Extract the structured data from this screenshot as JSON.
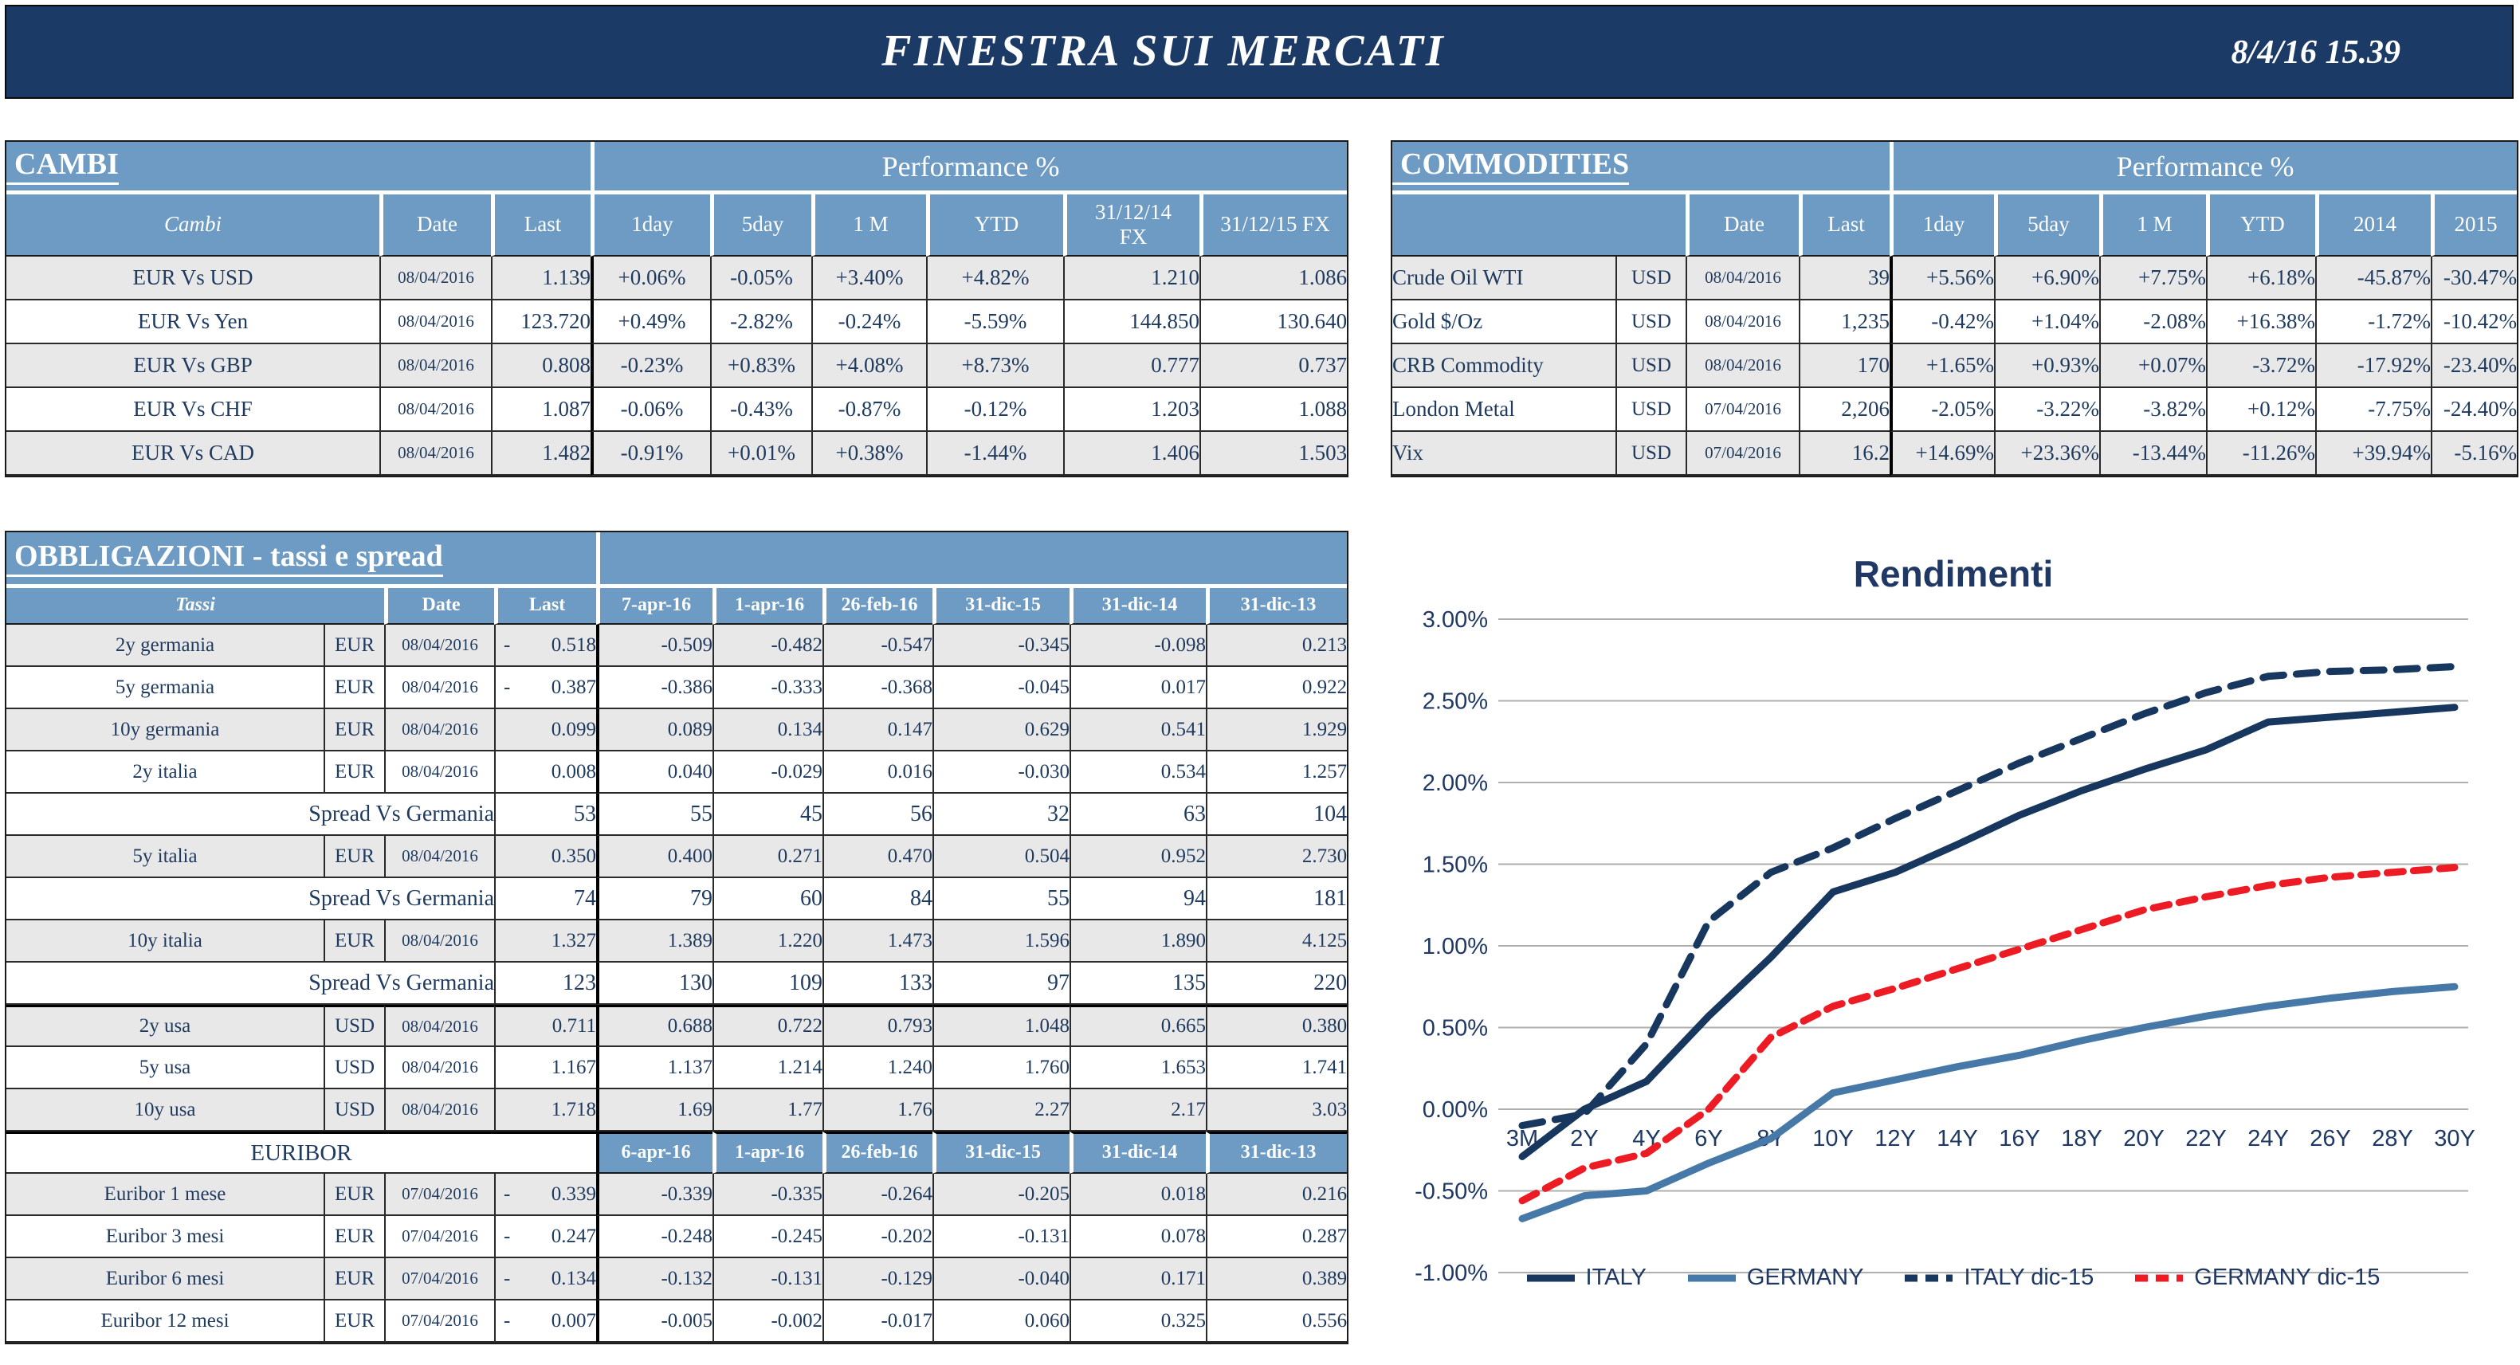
{
  "header": {
    "title": "FINESTRA SUI MERCATI",
    "datetime": "8/4/16 15.39"
  },
  "colors": {
    "bar_navy": "#1C3A66",
    "accent_blue": "#6D9BC3",
    "navy_text": "#1F3A5F",
    "green": "#16A360",
    "red": "#E8192C",
    "row_gray": "#E9E8E8",
    "grid_gray": "#AFAFAF"
  },
  "cambi": {
    "section_title": "CAMBI",
    "perf_title": "Performance %",
    "columns": [
      "Cambi",
      "Date",
      "Last",
      "1day",
      "5day",
      "1 M",
      "YTD",
      "31/12/14\nFX",
      "31/12/15  FX"
    ],
    "rows": [
      {
        "name": "EUR Vs USD",
        "date": "08/04/2016",
        "last": "1.139",
        "perf": [
          {
            "v": "+0.06%",
            "c": "g"
          },
          {
            "v": "-0.05%",
            "c": "r"
          },
          {
            "v": "+3.40%",
            "c": "g"
          },
          {
            "v": "+4.82%",
            "c": "g"
          }
        ],
        "fx14": "1.210",
        "fx15": "1.086"
      },
      {
        "name": "EUR Vs Yen",
        "date": "08/04/2016",
        "last": "123.720",
        "perf": [
          {
            "v": "+0.49%",
            "c": "g"
          },
          {
            "v": "-2.82%",
            "c": "r"
          },
          {
            "v": "-0.24%",
            "c": "r"
          },
          {
            "v": "-5.59%",
            "c": "r"
          }
        ],
        "fx14": "144.850",
        "fx15": "130.640"
      },
      {
        "name": "EUR Vs GBP",
        "date": "08/04/2016",
        "last": "0.808",
        "perf": [
          {
            "v": "-0.23%",
            "c": "r"
          },
          {
            "v": "+0.83%",
            "c": "g"
          },
          {
            "v": "+4.08%",
            "c": "g"
          },
          {
            "v": "+8.73%",
            "c": "g"
          }
        ],
        "fx14": "0.777",
        "fx15": "0.737"
      },
      {
        "name": "EUR Vs CHF",
        "date": "08/04/2016",
        "last": "1.087",
        "perf": [
          {
            "v": "-0.06%",
            "c": "r"
          },
          {
            "v": "-0.43%",
            "c": "r"
          },
          {
            "v": "-0.87%",
            "c": "r"
          },
          {
            "v": "-0.12%",
            "c": "r"
          }
        ],
        "fx14": "1.203",
        "fx15": "1.088"
      },
      {
        "name": "EUR Vs CAD",
        "date": "08/04/2016",
        "last": "1.482",
        "perf": [
          {
            "v": "-0.91%",
            "c": "r"
          },
          {
            "v": "+0.01%",
            "c": "g"
          },
          {
            "v": "+0.38%",
            "c": "g"
          },
          {
            "v": "-1.44%",
            "c": "r"
          }
        ],
        "fx14": "1.406",
        "fx15": "1.503"
      }
    ]
  },
  "commodities": {
    "section_title": "COMMODITIES",
    "perf_title": "Performance %",
    "columns": [
      "",
      "Date",
      "Last",
      "1day",
      "5day",
      "1 M",
      "YTD",
      "2014",
      "2015"
    ],
    "rows": [
      {
        "name": "Crude Oil WTI",
        "ccy": "USD",
        "date": "08/04/2016",
        "last": "39",
        "perf": [
          {
            "v": "+5.56%",
            "c": "g"
          },
          {
            "v": "+6.90%",
            "c": "g"
          },
          {
            "v": "+7.75%",
            "c": "g"
          },
          {
            "v": "+6.18%",
            "c": "g"
          },
          {
            "v": "-45.87%",
            "c": "r"
          },
          {
            "v": "-30.47%",
            "c": "r"
          }
        ]
      },
      {
        "name": "Gold $/Oz",
        "ccy": "USD",
        "date": "08/04/2016",
        "last": "1,235",
        "perf": [
          {
            "v": "-0.42%",
            "c": "r"
          },
          {
            "v": "+1.04%",
            "c": "g"
          },
          {
            "v": "-2.08%",
            "c": "r"
          },
          {
            "v": "+16.38%",
            "c": "g"
          },
          {
            "v": "-1.72%",
            "c": "r"
          },
          {
            "v": "-10.42%",
            "c": "r"
          }
        ]
      },
      {
        "name": "CRB Commodity",
        "ccy": "USD",
        "date": "08/04/2016",
        "last": "170",
        "perf": [
          {
            "v": "+1.65%",
            "c": "g"
          },
          {
            "v": "+0.93%",
            "c": "g"
          },
          {
            "v": "+0.07%",
            "c": "g"
          },
          {
            "v": "-3.72%",
            "c": "r"
          },
          {
            "v": "-17.92%",
            "c": "r"
          },
          {
            "v": "-23.40%",
            "c": "r"
          }
        ]
      },
      {
        "name": "London Metal",
        "ccy": "USD",
        "date": "07/04/2016",
        "last": "2,206",
        "perf": [
          {
            "v": "-2.05%",
            "c": "r"
          },
          {
            "v": "-3.22%",
            "c": "r"
          },
          {
            "v": "-3.82%",
            "c": "r"
          },
          {
            "v": "+0.12%",
            "c": "g"
          },
          {
            "v": "-7.75%",
            "c": "r"
          },
          {
            "v": "-24.40%",
            "c": "r"
          }
        ]
      },
      {
        "name": "Vix",
        "ccy": "USD",
        "date": "07/04/2016",
        "last": "16.2",
        "perf": [
          {
            "v": "+14.69%",
            "c": "g"
          },
          {
            "v": "+23.36%",
            "c": "g"
          },
          {
            "v": "-13.44%",
            "c": "r"
          },
          {
            "v": "-11.26%",
            "c": "r"
          },
          {
            "v": "+39.94%",
            "c": "g"
          },
          {
            "v": "-5.16%",
            "c": "r"
          }
        ]
      }
    ]
  },
  "obbligazioni": {
    "section_title": "OBBLIGAZIONI - tassi e spread",
    "neg_prefix": "-",
    "columns": [
      "Tassi",
      "Date",
      "Last",
      "7-apr-16",
      "1-apr-16",
      "26-feb-16",
      "31-dic-15",
      "31-dic-14",
      "31-dic-13"
    ],
    "rows": [
      {
        "type": "data",
        "name": "2y germania",
        "ccy": "EUR",
        "date": "08/04/2016",
        "last": "0.518",
        "last_neg": true,
        "shade": true,
        "vals": [
          "-0.509",
          "-0.482",
          "-0.547",
          "-0.345",
          "-0.098",
          "0.213"
        ]
      },
      {
        "type": "data",
        "name": "5y germania",
        "ccy": "EUR",
        "date": "08/04/2016",
        "last": "0.387",
        "last_neg": true,
        "shade": false,
        "vals": [
          "-0.386",
          "-0.333",
          "-0.368",
          "-0.045",
          "0.017",
          "0.922"
        ]
      },
      {
        "type": "data",
        "name": "10y germania",
        "ccy": "EUR",
        "date": "08/04/2016",
        "last": "0.099",
        "last_neg": false,
        "shade": true,
        "vals": [
          "0.089",
          "0.134",
          "0.147",
          "0.629",
          "0.541",
          "1.929"
        ]
      },
      {
        "type": "data",
        "name": "2y italia",
        "ccy": "EUR",
        "date": "08/04/2016",
        "last": "0.008",
        "last_neg": false,
        "shade": false,
        "vals": [
          "0.040",
          "-0.029",
          "0.016",
          "-0.030",
          "0.534",
          "1.257"
        ]
      },
      {
        "type": "spread",
        "label": "Spread Vs Germania",
        "last": "53",
        "shade": false,
        "vals": [
          "55",
          "45",
          "56",
          "32",
          "63",
          "104"
        ]
      },
      {
        "type": "data",
        "name": "5y italia",
        "ccy": "EUR",
        "date": "08/04/2016",
        "last": "0.350",
        "last_neg": false,
        "shade": true,
        "vals": [
          "0.400",
          "0.271",
          "0.470",
          "0.504",
          "0.952",
          "2.730"
        ]
      },
      {
        "type": "spread",
        "label": "Spread Vs Germania",
        "last": "74",
        "shade": false,
        "vals": [
          "79",
          "60",
          "84",
          "55",
          "94",
          "181"
        ]
      },
      {
        "type": "data",
        "name": "10y italia",
        "ccy": "EUR",
        "date": "08/04/2016",
        "last": "1.327",
        "last_neg": false,
        "shade": true,
        "vals": [
          "1.389",
          "1.220",
          "1.473",
          "1.596",
          "1.890",
          "4.125"
        ]
      },
      {
        "type": "spread",
        "label": "Spread Vs Germania",
        "last": "123",
        "shade": false,
        "vals": [
          "130",
          "109",
          "133",
          "97",
          "135",
          "220"
        ]
      },
      {
        "type": "data",
        "name": "2y usa",
        "ccy": "USD",
        "date": "08/04/2016",
        "last": "0.711",
        "last_neg": false,
        "shade": true,
        "thick_top": true,
        "vals": [
          "0.688",
          "0.722",
          "0.793",
          "1.048",
          "0.665",
          "0.380"
        ]
      },
      {
        "type": "data",
        "name": "5y usa",
        "ccy": "USD",
        "date": "08/04/2016",
        "last": "1.167",
        "last_neg": false,
        "shade": false,
        "vals": [
          "1.137",
          "1.214",
          "1.240",
          "1.760",
          "1.653",
          "1.741"
        ]
      },
      {
        "type": "data",
        "name": "10y usa",
        "ccy": "USD",
        "date": "08/04/2016",
        "last": "1.718",
        "last_neg": false,
        "shade": true,
        "vals": [
          "1.69",
          "1.77",
          "1.76",
          "2.27",
          "2.17",
          "3.03"
        ]
      },
      {
        "type": "euribor_header",
        "label": "EURIBOR",
        "shade": false,
        "thick_top": true,
        "dates": [
          "6-apr-16",
          "1-apr-16",
          "26-feb-16",
          "31-dic-15",
          "31-dic-14",
          "31-dic-13"
        ]
      },
      {
        "type": "data",
        "name": "Euribor 1 mese",
        "ccy": "EUR",
        "date": "07/04/2016",
        "last": "0.339",
        "last_neg": true,
        "shade": true,
        "vals": [
          "-0.339",
          "-0.335",
          "-0.264",
          "-0.205",
          "0.018",
          "0.216"
        ]
      },
      {
        "type": "data",
        "name": "Euribor 3 mesi",
        "ccy": "EUR",
        "date": "07/04/2016",
        "last": "0.247",
        "last_neg": true,
        "shade": false,
        "vals": [
          "-0.248",
          "-0.245",
          "-0.202",
          "-0.131",
          "0.078",
          "0.287"
        ]
      },
      {
        "type": "data",
        "name": "Euribor 6 mesi",
        "ccy": "EUR",
        "date": "07/04/2016",
        "last": "0.134",
        "last_neg": true,
        "shade": true,
        "vals": [
          "-0.132",
          "-0.131",
          "-0.129",
          "-0.040",
          "0.171",
          "0.389"
        ]
      },
      {
        "type": "data",
        "name": "Euribor 12 mesi",
        "ccy": "EUR",
        "date": "07/04/2016",
        "last": "0.007",
        "last_neg": true,
        "shade": false,
        "vals": [
          "-0.005",
          "-0.002",
          "-0.017",
          "0.060",
          "0.325",
          "0.556"
        ]
      }
    ]
  },
  "chart_data": {
    "type": "line",
    "title": "Rendimenti",
    "x": [
      "3M",
      "2Y",
      "4Y",
      "6Y",
      "8Y",
      "10Y",
      "12Y",
      "14Y",
      "16Y",
      "18Y",
      "20Y",
      "22Y",
      "24Y",
      "26Y",
      "28Y",
      "30Y"
    ],
    "series": [
      {
        "name": "ITALY",
        "color": "#17375E",
        "dashed": false,
        "values": [
          -0.29,
          0.0,
          0.17,
          0.57,
          0.93,
          1.33,
          1.45,
          1.62,
          1.8,
          1.95,
          2.08,
          2.2,
          2.37,
          2.4,
          2.43,
          2.46
        ]
      },
      {
        "name": "GERMANY",
        "color": "#4678A8",
        "dashed": false,
        "values": [
          -0.67,
          -0.53,
          -0.5,
          -0.33,
          -0.18,
          0.1,
          0.18,
          0.26,
          0.33,
          0.42,
          0.5,
          0.57,
          0.63,
          0.68,
          0.72,
          0.75
        ]
      },
      {
        "name": "ITALY dic-15",
        "color": "#17375E",
        "dashed": true,
        "values": [
          -0.1,
          -0.03,
          0.4,
          1.15,
          1.45,
          1.6,
          1.78,
          1.95,
          2.12,
          2.27,
          2.42,
          2.55,
          2.65,
          2.68,
          2.69,
          2.71
        ]
      },
      {
        "name": "GERMANY dic-15",
        "color": "#ED1C24",
        "dashed": true,
        "values": [
          -0.56,
          -0.36,
          -0.27,
          0.0,
          0.44,
          0.63,
          0.74,
          0.86,
          0.98,
          1.1,
          1.22,
          1.3,
          1.37,
          1.42,
          1.45,
          1.48
        ]
      }
    ],
    "ylim": [
      -1.0,
      3.0
    ],
    "yticks": [
      3.0,
      2.5,
      2.0,
      1.5,
      1.0,
      0.5,
      0.0,
      -0.5,
      -1.0
    ],
    "ytick_labels": [
      "3.00%",
      "2.50%",
      "2.00%",
      "1.50%",
      "1.00%",
      "0.50%",
      "0.00%",
      "-0.50%",
      "-1.00%"
    ],
    "grid": true,
    "legend_position": "bottom"
  }
}
